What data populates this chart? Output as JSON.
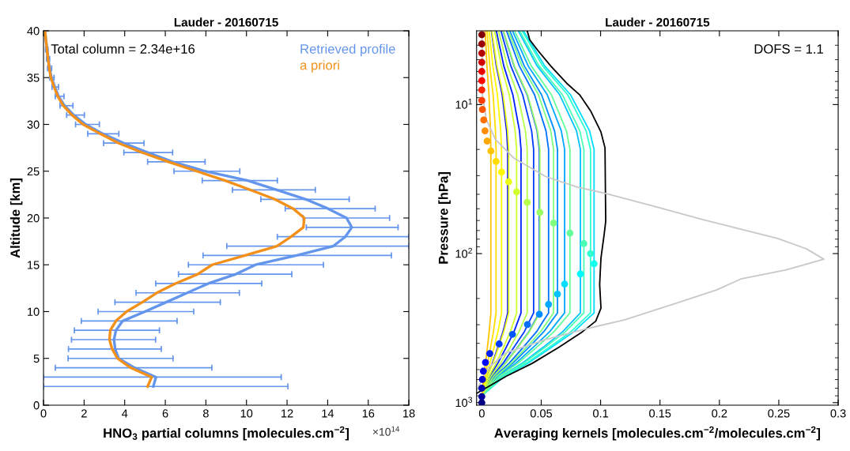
{
  "chart_data": [
    {
      "type": "line",
      "title": "Lauder - 20160715",
      "xlabel": "HNO$_{3}$ partial columns [molecules.cm$^{−2}$]",
      "ylabel": "Altitude [km]",
      "annotations": [
        "Total column = 2.34e+16",
        "×10$^{14}$"
      ],
      "xlim": [
        0,
        18
      ],
      "ylim": [
        0,
        40
      ],
      "xticks": [
        0,
        2,
        4,
        6,
        8,
        10,
        12,
        14,
        16,
        18
      ],
      "yticks": [
        0,
        5,
        10,
        15,
        20,
        25,
        30,
        35,
        40
      ],
      "legend": "top right",
      "series": [
        {
          "name": "Retrieved profile",
          "color": "#6495ed",
          "x": [
            5.41,
            5.54,
            4.48,
            3.7,
            3.53,
            3.47,
            3.57,
            3.9,
            5.0,
            6.04,
            7.08,
            8.12,
            9.48,
            10.45,
            12.47,
            14.28,
            14.87,
            15.19,
            14.93,
            14.02,
            12.92,
            11.49,
            10.06,
            7.95,
            6.36,
            5.13,
            3.96,
            2.92,
            2.08,
            1.49,
            1.04,
            0.74,
            0.56,
            0.39,
            0.3,
            0.23,
            0.17,
            0.12,
            0.07
          ],
          "values": [
            2,
            3,
            4,
            5,
            6,
            7,
            8,
            9,
            10,
            11,
            12,
            13,
            14,
            15,
            16,
            17,
            18,
            19,
            20,
            21,
            22,
            23,
            24,
            25,
            26,
            27,
            28,
            29,
            30,
            31,
            32,
            33,
            34,
            35,
            36,
            37,
            38,
            39,
            40
          ],
          "xerrors": [
            [
              0,
              12.04
            ],
            [
              0,
              11.71
            ],
            [
              0.58,
              8.29
            ],
            [
              1.21,
              6.38
            ],
            [
              1.23,
              5.8
            ],
            [
              1.38,
              5.52
            ],
            [
              1.52,
              5.71
            ],
            [
              1.86,
              6.58
            ],
            [
              2.69,
              7.4
            ],
            [
              3.52,
              8.71
            ],
            [
              4.56,
              9.65
            ],
            [
              5.53,
              10.75
            ],
            [
              6.65,
              12.23
            ],
            [
              7.14,
              13.79
            ],
            [
              7.86,
              17.14
            ],
            [
              9.03,
              18
            ],
            [
              11.52,
              18
            ],
            [
              12.95,
              17.47
            ],
            [
              12.79,
              17.05
            ],
            [
              11.91,
              16.34
            ],
            [
              10.71,
              15.06
            ],
            [
              9.31,
              13.39
            ],
            [
              7.82,
              11.52
            ],
            [
              6.43,
              9.67
            ],
            [
              5.13,
              7.96
            ],
            [
              3.96,
              6.36
            ],
            [
              2.96,
              4.95
            ],
            [
              2.18,
              3.71
            ],
            [
              1.58,
              2.75
            ],
            [
              1.14,
              2.01
            ],
            [
              0.81,
              1.45
            ],
            [
              0.58,
              1.01
            ],
            [
              0.42,
              0.74
            ],
            [
              0.3,
              0.52
            ],
            [
              0.2,
              0.4
            ],
            [
              0.15,
              0.3
            ],
            [
              0.1,
              0.22
            ],
            null,
            null
          ]
        },
        {
          "name": "a priori",
          "color": "#f39019",
          "x": [
            5.13,
            5.33,
            4.29,
            3.64,
            3.38,
            3.25,
            3.29,
            3.57,
            4.09,
            4.87,
            5.58,
            6.5,
            7.6,
            8.31,
            9.93,
            11.5,
            12.2,
            12.8,
            12.85,
            12.3,
            11.4,
            10.2,
            8.95,
            7.55,
            6.15,
            4.85,
            3.7,
            2.79,
            1.95,
            1.4,
            0.98,
            0.7,
            0.52,
            0.36,
            0.28,
            0.22,
            0.17,
            0.12,
            0.07
          ],
          "values": [
            2,
            3,
            4,
            5,
            6,
            7,
            8,
            9,
            10,
            11,
            12,
            13,
            14,
            15,
            16,
            17,
            18,
            19,
            20,
            21,
            22,
            23,
            24,
            25,
            26,
            27,
            28,
            29,
            30,
            31,
            32,
            33,
            34,
            35,
            36,
            37,
            38,
            39,
            40
          ]
        }
      ]
    },
    {
      "type": "line",
      "title": "Lauder - 20160715",
      "xlabel": "Averaging kernels [molecules.cm$^{−2}$/molecules.cm$^{−2}$]",
      "ylabel": "Pressure [hPa]",
      "annotations": [
        "DOFS = 1.1"
      ],
      "log": "y",
      "xlim": [
        -0.0044,
        0.3
      ],
      "ylim": [
        1040,
        3.2
      ],
      "xticks": [
        0,
        0.05,
        0.1,
        0.15,
        0.2,
        0.25,
        0.3
      ],
      "yticks": [
        {
          "value": 10,
          "label": "10$^{1}$"
        },
        {
          "value": 100,
          "label": "10$^{2}$"
        },
        {
          "value": 1000,
          "label": "10$^{3}$"
        }
      ],
      "series": [
        {
          "color": "#0007ff",
          "x": [
            0.0081,
            0.0122,
            0.0172,
            0.0209,
            0.0218,
            0.0218,
            0.0201,
            0.0179,
            0.0135,
            0.0089,
            0.0044,
            0
          ],
          "values": [
            3.2,
            5.5,
            8.6,
            15,
            20,
            250,
            284,
            334,
            426,
            544,
            666,
            900
          ]
        },
        {
          "color": "#0022ff",
          "x": [
            0.0122,
            0.0185,
            0.0261,
            0.0317,
            0.033,
            0.033,
            0.0304,
            0.0271,
            0.0205,
            0.0135,
            0.0066,
            0
          ],
          "values": [
            3.2,
            5.5,
            8.6,
            15,
            20,
            250,
            284,
            334,
            426,
            544,
            666,
            900
          ]
        },
        {
          "color": "#003cff",
          "x": [
            0.0161,
            0.0244,
            0.0344,
            0.0419,
            0.0436,
            0.0436,
            0.0401,
            0.0358,
            0.027,
            0.0179,
            0.0087,
            0
          ],
          "values": [
            3.2,
            5.5,
            8.6,
            15,
            20,
            250,
            284,
            334,
            426,
            544,
            666,
            900
          ]
        },
        {
          "color": "#0057ff",
          "x": [
            0.0179,
            0.0271,
            0.0382,
            0.0465,
            0.0484,
            0.0484,
            0.0445,
            0.0397,
            0.03,
            0.0198,
            0.0097,
            0
          ],
          "values": [
            3.2,
            5.5,
            8.6,
            15,
            20,
            250,
            284,
            334,
            426,
            544,
            666,
            900
          ]
        },
        {
          "color": "#0072ff",
          "x": [
            0.0208,
            0.0315,
            0.0444,
            0.054,
            0.0562,
            0.0562,
            0.0517,
            0.0461,
            0.0348,
            0.023,
            0.0112,
            0
          ],
          "values": [
            3.2,
            5.5,
            8.6,
            15,
            20,
            250,
            284,
            334,
            426,
            544,
            666,
            900
          ]
        },
        {
          "color": "#008dff",
          "x": [
            0.0236,
            0.0357,
            0.0503,
            0.0612,
            0.0637,
            0.0637,
            0.0586,
            0.0522,
            0.0395,
            0.0261,
            0.0127,
            0
          ],
          "values": [
            3.2,
            5.5,
            8.6,
            15,
            20,
            250,
            284,
            334,
            426,
            544,
            666,
            900
          ]
        },
        {
          "color": "#00a8ff",
          "x": [
            0.0258,
            0.039,
            0.0551,
            0.0669,
            0.0697,
            0.0697,
            0.0641,
            0.0572,
            0.0432,
            0.0286,
            0.0139,
            0
          ],
          "values": [
            3.2,
            5.5,
            8.6,
            15,
            20,
            250,
            284,
            334,
            426,
            544,
            666,
            900
          ]
        },
        {
          "color": "#00c3ff",
          "x": [
            0.0307,
            0.0465,
            0.0656,
            0.0797,
            0.083,
            0.083,
            0.0764,
            0.0681,
            0.0515,
            0.034,
            0.0166,
            0
          ],
          "values": [
            3.2,
            5.5,
            8.6,
            15,
            20,
            250,
            284,
            334,
            426,
            544,
            666,
            900
          ]
        },
        {
          "color": "#00ddff",
          "x": [
            0.035,
            0.0529,
            0.0747,
            0.0907,
            0.0945,
            0.0945,
            0.0869,
            0.0775,
            0.0586,
            0.0387,
            0.0189,
            0
          ],
          "values": [
            3.2,
            5.5,
            8.6,
            15,
            20,
            250,
            284,
            334,
            426,
            544,
            666,
            900
          ]
        },
        {
          "color": "#2fffd0",
          "x": [
            0.0339,
            0.0512,
            0.0723,
            0.0878,
            0.0915,
            0.0915,
            0.0842,
            0.075,
            0.0567,
            0.0375,
            0.0183,
            0
          ],
          "values": [
            3.2,
            5.5,
            8.6,
            15,
            20,
            250,
            284,
            334,
            426,
            544,
            666,
            900
          ]
        },
        {
          "color": "#4affb5",
          "x": [
            0.0318,
            0.0481,
            0.0679,
            0.0825,
            0.0859,
            0.0859,
            0.079,
            0.0704,
            0.0533,
            0.0352,
            0.0172,
            0
          ],
          "values": [
            3.2,
            5.5,
            8.6,
            15,
            20,
            250,
            284,
            334,
            426,
            544,
            666,
            900
          ]
        },
        {
          "color": "#65ff9a",
          "x": [
            0.0275,
            0.0416,
            0.0586,
            0.0712,
            0.0742,
            0.0742,
            0.0683,
            0.0608,
            0.046,
            0.0304,
            0.0148,
            0
          ],
          "values": [
            3.2,
            5.5,
            8.6,
            15,
            20,
            250,
            284,
            334,
            426,
            544,
            666,
            900
          ]
        },
        {
          "color": "#80ff80",
          "x": [
            0.0223,
            0.0338,
            0.0477,
            0.058,
            0.0604,
            0.0604,
            0.0556,
            0.0495,
            0.0374,
            0.0248,
            0.0121,
            0
          ],
          "values": [
            3.2,
            5.5,
            8.6,
            15,
            20,
            250,
            284,
            334,
            426,
            544,
            666,
            900
          ]
        },
        {
          "color": "#9aff65",
          "x": [
            0.0181,
            0.0274,
            0.0386,
            0.0469,
            0.0489,
            0.0489,
            0.045,
            0.0401,
            0.0303,
            0.02,
            0.0098,
            0
          ],
          "values": [
            3.2,
            5.5,
            8.6,
            15,
            20,
            250,
            284,
            334,
            426,
            544,
            666,
            900
          ]
        },
        {
          "color": "#b5ff4a",
          "x": [
            0.0141,
            0.0214,
            0.0302,
            0.0367,
            0.0382,
            0.0382,
            0.0351,
            0.0313,
            0.0237,
            0.0157,
            0.0076,
            0
          ],
          "values": [
            3.2,
            5.5,
            8.6,
            15,
            20,
            250,
            284,
            334,
            426,
            544,
            666,
            900
          ]
        },
        {
          "color": "#d0ff2f",
          "x": [
            0.0108,
            0.0164,
            0.0231,
            0.0281,
            0.0293,
            0.0293,
            0.027,
            0.024,
            0.0182,
            0.012,
            0.0059,
            0
          ],
          "values": [
            3.2,
            5.5,
            8.6,
            15,
            20,
            250,
            284,
            334,
            426,
            544,
            666,
            900
          ]
        },
        {
          "color": "#ebff14",
          "x": [
            0.0084,
            0.0127,
            0.0179,
            0.0217,
            0.0226,
            0.0226,
            0.0208,
            0.0185,
            0.014,
            0.0093,
            0.0045,
            0
          ],
          "values": [
            3.2,
            5.5,
            8.6,
            15,
            20,
            250,
            284,
            334,
            426,
            544,
            666,
            900
          ]
        },
        {
          "color": "#fff800",
          "x": [
            0.0061,
            0.0093,
            0.0131,
            0.0159,
            0.0166,
            0.0166,
            0.0153,
            0.0136,
            0.0103,
            0.0068,
            0.0033,
            0
          ],
          "values": [
            3.2,
            5.5,
            8.6,
            15,
            20,
            250,
            284,
            334,
            426,
            544,
            666,
            900
          ]
        },
        {
          "color": "#ffdd00",
          "x": [
            0.0044,
            0.0067,
            0.0095,
            0.0115,
            0.012,
            0.012,
            0.011,
            0.0098,
            0.0074,
            0.0049,
            0.0024,
            0
          ],
          "values": [
            3.2,
            5.5,
            8.6,
            15,
            20,
            250,
            284,
            334,
            426,
            544,
            666,
            900
          ]
        },
        {
          "color": "#ffc300",
          "x": [
            0.0028,
            0.0043,
            0.006,
            0.0073,
            0.0076,
            0.0076,
            0.007,
            0.0062,
            0.0047,
            0.0031,
            0.0015,
            0
          ],
          "values": [
            3.2,
            5.5,
            8.6,
            15,
            20,
            250,
            284,
            334,
            426,
            544,
            666,
            900
          ]
        },
        {
          "color": "#000000",
          "x": [
            0.0382,
            0.0404,
            0.0471,
            0.0582,
            0.0715,
            0.0826,
            0.0915,
            0.1003,
            0.1037,
            0.1043,
            0.103,
            0.1003,
            0.0992,
            0.1003,
            0.0959,
            0.0848,
            0.0648,
            0.0426,
            0.0204,
            -0.0044
          ],
          "values": [
            3.2,
            3.68,
            4.33,
            5.53,
            7.2,
            8.64,
            11.0,
            15.3,
            19.5,
            60.7,
            74.3,
            107,
            161,
            232,
            284,
            334,
            426,
            544,
            666,
            867
          ]
        },
        {
          "color": "#c8c8c8",
          "x": [
            0.0002,
            0.0005,
            0.0038,
            0.0116,
            0.0271,
            0.0537,
            0.0804,
            0.1048,
            0.1425,
            0.1869,
            0.249,
            0.2734,
            0.2879,
            0.2557,
            0.218,
            0.198,
            0.1647,
            0.1203,
            0.087,
            0.0537,
            0.0204,
            0.0049,
            -0.004
          ],
          "values": [
            3.2,
            8.64,
            12.6,
            17.2,
            22.9,
            30.4,
            35.8,
            39.6,
            47.6,
            59.4,
            79.1,
            93.0,
            109,
            129,
            148,
            175,
            214,
            278,
            321,
            377,
            463,
            590,
            817
          ]
        },
        {
          "type": "scatter",
          "marker": "circle",
          "x": [
            0,
            0,
            0,
            0,
            0,
            0,
            0,
            0,
            0.0005,
            0.0016,
            0.0027,
            0.0045,
            0.0076,
            0.012,
            0.0166,
            0.0226,
            0.0293,
            0.0382,
            0.0489,
            0.0604,
            0.0742,
            0.0859,
            0.0915,
            0.0945,
            0.083,
            0.0697,
            0.0637,
            0.0562,
            0.0484,
            0.0384,
            0.0258,
            0.0146,
            0.0067,
            0.0031,
            0.0013,
            0.0005,
            0,
            0,
            0
          ],
          "values": [
            3.4,
            3.92,
            4.52,
            5.2,
            6.0,
            6.92,
            7.97,
            9.38,
            10.8,
            12.7,
            15.0,
            17.6,
            20.5,
            24.1,
            28.4,
            33.0,
            38.5,
            45.3,
            52.9,
            62.4,
            72.8,
            85.7,
            100,
            117,
            137,
            160,
            187,
            219,
            255,
            299,
            348,
            404,
            468,
            537,
            614,
            699,
            800,
            910,
            1000
          ],
          "colors": [
            "#800000",
            "#9a0000",
            "#b50000",
            "#d00000",
            "#eb0000",
            "#ff0700",
            "#ff2200",
            "#ff3c00",
            "#ff5700",
            "#ff7200",
            "#ff8d00",
            "#ffa800",
            "#ffc300",
            "#ffdd00",
            "#fff800",
            "#ebff14",
            "#d0ff2f",
            "#b5ff4a",
            "#9aff65",
            "#80ff80",
            "#65ff9a",
            "#4affb5",
            "#2fffd0",
            "#14ffeb",
            "#00f8ff",
            "#00ddff",
            "#00c3ff",
            "#00a8ff",
            "#008dff",
            "#0072ff",
            "#0057ff",
            "#003cff",
            "#0022ff",
            "#0007ff",
            "#0000eb",
            "#0000d0",
            "#0000b5",
            "#00009a",
            "#000080"
          ]
        }
      ]
    }
  ]
}
